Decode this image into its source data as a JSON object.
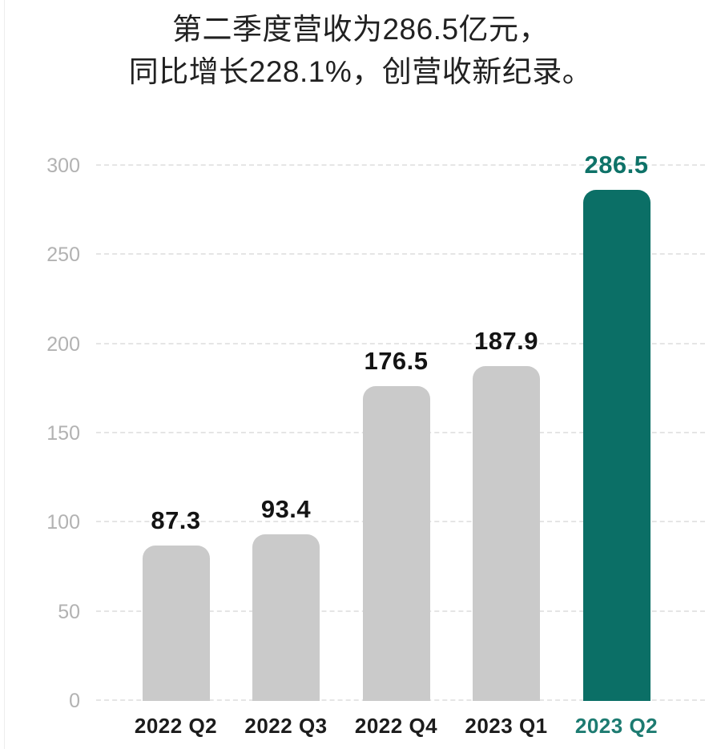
{
  "title": {
    "line1": "第二季度营收为286.5亿元，",
    "line2": "同比增长228.1%，创营收新纪录。"
  },
  "chart_data": {
    "type": "bar",
    "title": "第二季度营收为286.5亿元，同比增长228.1%，创营收新纪录。",
    "categories": [
      "2022 Q2",
      "2022 Q3",
      "2022 Q4",
      "2023 Q1",
      "2023 Q2"
    ],
    "values": [
      87.3,
      93.4,
      176.5,
      187.9,
      286.5
    ],
    "value_labels": [
      "87.3",
      "93.4",
      "176.5",
      "187.9",
      "286.5"
    ],
    "yticks": [
      0,
      50,
      100,
      150,
      200,
      250,
      300
    ],
    "ylim": [
      0,
      300
    ],
    "xlabel": "",
    "ylabel": "",
    "grid": "horizontal-dashed",
    "legend": "none",
    "highlight_index": 4,
    "colors": {
      "bar_default": "#cacaca",
      "bar_highlight": "#0b6f66",
      "value_label_default": "#141414",
      "value_label_highlight": "#0e7268",
      "xtick_default": "#1c1c1c",
      "xtick_highlight": "#1d7b71",
      "ytick": "#b2b2b2",
      "gridline": "#e5e5e5",
      "title": "#212121",
      "background": "#ffffff"
    }
  }
}
